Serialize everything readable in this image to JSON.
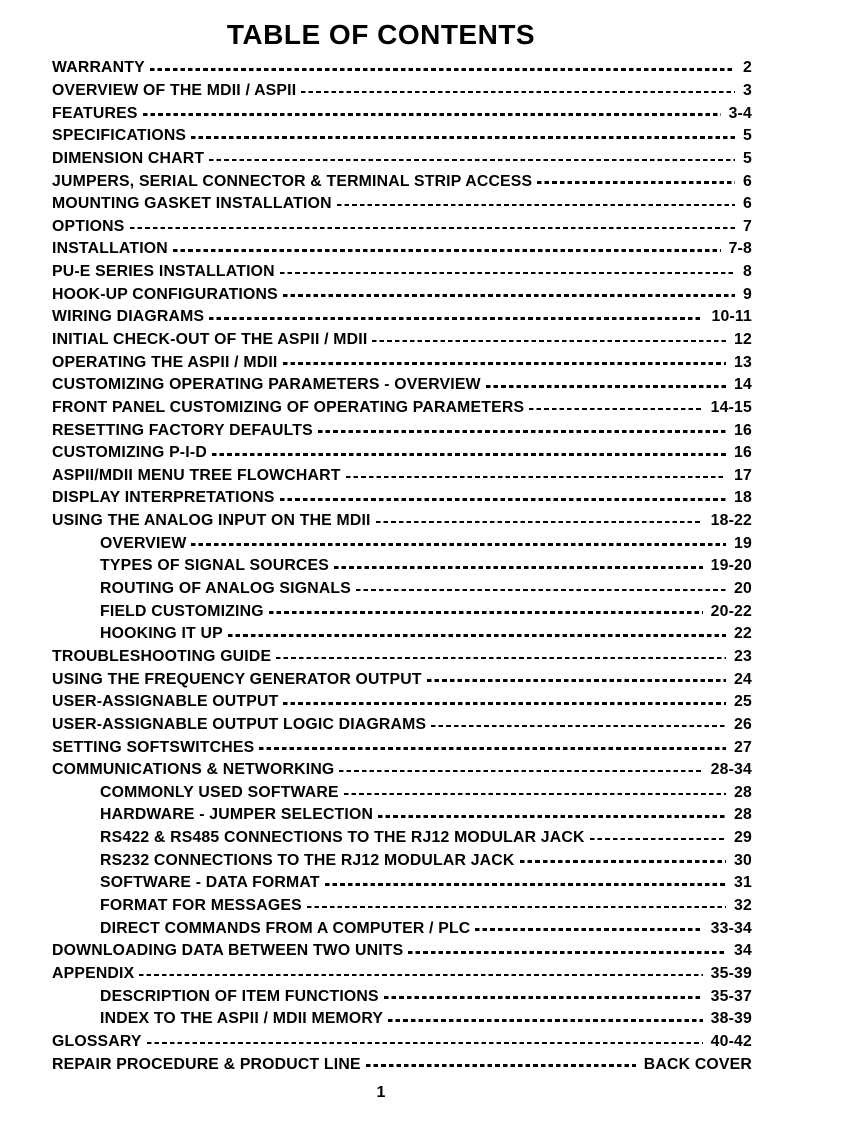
{
  "page": {
    "title": "TABLE OF CONTENTS",
    "page_number": "1"
  },
  "toc": {
    "entries": [
      {
        "label": "WARRANTY",
        "page": "2",
        "indent": 0
      },
      {
        "label": "OVERVIEW OF THE MDII / ASPII",
        "page": "3",
        "indent": 0
      },
      {
        "label": "FEATURES",
        "page": "3-4",
        "indent": 0
      },
      {
        "label": "SPECIFICATIONS",
        "page": "5",
        "indent": 0
      },
      {
        "label": "DIMENSION CHART",
        "page": "5",
        "indent": 0
      },
      {
        "label": "JUMPERS, SERIAL CONNECTOR & TERMINAL STRIP ACCESS",
        "page": "6",
        "indent": 0
      },
      {
        "label": "MOUNTING GASKET INSTALLATION",
        "page": "6",
        "indent": 0
      },
      {
        "label": "OPTIONS",
        "page": "7",
        "indent": 0
      },
      {
        "label": "INSTALLATION",
        "page": "7-8",
        "indent": 0
      },
      {
        "label": "PU-E SERIES INSTALLATION",
        "page": "8",
        "indent": 0
      },
      {
        "label": "HOOK-UP CONFIGURATIONS",
        "page": "9",
        "indent": 0
      },
      {
        "label": "WIRING DIAGRAMS",
        "page": "10-11",
        "indent": 0
      },
      {
        "label": "INITIAL CHECK-OUT OF THE ASPII / MDII",
        "page": "12",
        "indent": 0
      },
      {
        "label": "OPERATING THE ASPII / MDII",
        "page": "13",
        "indent": 0
      },
      {
        "label": "CUSTOMIZING OPERATING PARAMETERS - OVERVIEW",
        "page": "14",
        "indent": 0
      },
      {
        "label": "FRONT PANEL CUSTOMIZING OF OPERATING PARAMETERS",
        "page": "14-15",
        "indent": 0
      },
      {
        "label": "RESETTING FACTORY DEFAULTS",
        "page": "16",
        "indent": 0
      },
      {
        "label": "CUSTOMIZING P-I-D",
        "page": "16",
        "indent": 0
      },
      {
        "label": "ASPII/MDII MENU TREE FLOWCHART",
        "page": "17",
        "indent": 0
      },
      {
        "label": "DISPLAY INTERPRETATIONS",
        "page": "18",
        "indent": 0
      },
      {
        "label": "USING THE ANALOG INPUT ON THE MDII",
        "page": "18-22",
        "indent": 0
      },
      {
        "label": "OVERVIEW",
        "page": "19",
        "indent": 1
      },
      {
        "label": "TYPES OF SIGNAL SOURCES",
        "page": "19-20",
        "indent": 1
      },
      {
        "label": "ROUTING OF ANALOG SIGNALS",
        "page": "20",
        "indent": 1
      },
      {
        "label": "FIELD CUSTOMIZING",
        "page": "20-22",
        "indent": 1
      },
      {
        "label": "HOOKING IT UP",
        "page": "22",
        "indent": 1
      },
      {
        "label": "TROUBLESHOOTING GUIDE",
        "page": "23",
        "indent": 0
      },
      {
        "label": "USING THE FREQUENCY GENERATOR OUTPUT",
        "page": "24",
        "indent": 0
      },
      {
        "label": "USER-ASSIGNABLE OUTPUT",
        "page": "25",
        "indent": 0
      },
      {
        "label": "USER-ASSIGNABLE OUTPUT LOGIC DIAGRAMS",
        "page": "26",
        "indent": 0
      },
      {
        "label": "SETTING SOFTSWITCHES",
        "page": "27",
        "indent": 0
      },
      {
        "label": "COMMUNICATIONS & NETWORKING",
        "page": "28-34",
        "indent": 0
      },
      {
        "label": "COMMONLY USED SOFTWARE",
        "page": "28",
        "indent": 1
      },
      {
        "label": "HARDWARE - JUMPER SELECTION",
        "page": "28",
        "indent": 1
      },
      {
        "label": "RS422 & RS485 CONNECTIONS TO THE RJ12 MODULAR JACK",
        "page": "29",
        "indent": 1
      },
      {
        "label": "RS232 CONNECTIONS TO THE RJ12 MODULAR JACK",
        "page": "30",
        "indent": 1
      },
      {
        "label": "SOFTWARE - DATA FORMAT",
        "page": "31",
        "indent": 1
      },
      {
        "label": "FORMAT FOR MESSAGES",
        "page": "32",
        "indent": 1
      },
      {
        "label": "DIRECT COMMANDS FROM A COMPUTER / PLC",
        "page": "33-34",
        "indent": 1
      },
      {
        "label": "DOWNLOADING DATA BETWEEN TWO UNITS",
        "page": "34",
        "indent": 0
      },
      {
        "label": "APPENDIX",
        "page": "35-39",
        "indent": 0
      },
      {
        "label": "DESCRIPTION OF ITEM FUNCTIONS",
        "page": "35-37",
        "indent": 1
      },
      {
        "label": "INDEX TO THE ASPII / MDII MEMORY",
        "page": "38-39",
        "indent": 1
      },
      {
        "label": "GLOSSARY",
        "page": "40-42",
        "indent": 0
      },
      {
        "label": "REPAIR PROCEDURE & PRODUCT LINE",
        "page": "BACK COVER",
        "indent": 0
      }
    ]
  }
}
